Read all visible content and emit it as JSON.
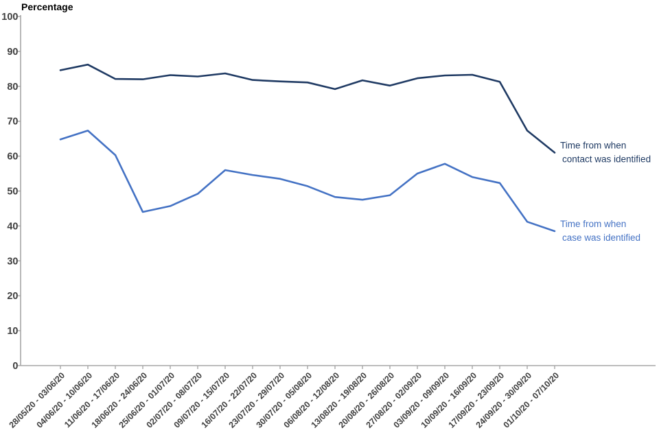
{
  "chart_data": {
    "type": "line",
    "title": "",
    "ylabel": "Percentage",
    "xlabel": "",
    "ylim": [
      0,
      100
    ],
    "y_ticks": [
      0,
      10,
      20,
      30,
      40,
      50,
      60,
      70,
      80,
      90,
      100
    ],
    "grid": false,
    "legend_position": "end-of-line annotations",
    "categories": [
      "28/05/20 - 03/06/20",
      "04/06/20 - 10/06/20",
      "11/06/20 - 17/06/20",
      "18/06/20 - 24/06/20",
      "25/06/20 - 01/07/20",
      "02/07/20 - 08/07/20",
      "09/07/20 - 15/07/20",
      "16/07/20 - 22/07/20",
      "23/07/20 - 29/07/20",
      "30/07/20 - 05/08/20",
      "06/08/20 - 12/08/20",
      "13/08/20 - 19/08/20",
      "20/08/20 - 26/08/20",
      "27/08/20 - 02/09/20",
      "03/09/20 - 09/09/20",
      "10/09/20 - 16/09/20",
      "17/09/20 - 23/09/20",
      "24/09/20 - 30/09/20",
      "01/10/20 - 07/10/20"
    ],
    "series": [
      {
        "name": "Time from when contact was identified",
        "label_lines": [
          "Time from when",
          "contact was identified"
        ],
        "color": "#1f3a63",
        "values": [
          84.6,
          86.2,
          82.1,
          82.0,
          83.2,
          82.8,
          83.7,
          81.8,
          81.4,
          81.1,
          79.2,
          81.7,
          80.2,
          82.3,
          83.1,
          83.3,
          81.3,
          67.3,
          61.0
        ]
      },
      {
        "name": "Time from when case was identified",
        "label_lines": [
          "Time from when",
          "case was identified"
        ],
        "color": "#4472c4",
        "values": [
          64.8,
          67.3,
          60.3,
          44.0,
          45.7,
          49.2,
          56.0,
          54.6,
          53.5,
          51.4,
          48.3,
          47.5,
          48.8,
          55.0,
          57.8,
          54.0,
          52.3,
          41.2,
          38.5
        ]
      }
    ],
    "axis_color": "#a6a6a6",
    "tick_label_color": "#3f3f3f"
  }
}
